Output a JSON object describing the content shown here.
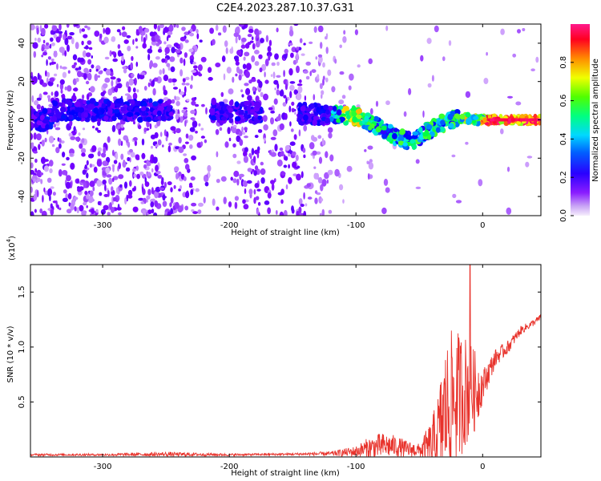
{
  "title": "C2E4.2023.287.10.37.G31",
  "chart_data": [
    {
      "type": "heatmap",
      "xlabel": "Height of straight line (km)",
      "ylabel": "Frequency (Hz)",
      "xlim": [
        -357,
        46
      ],
      "ylim": [
        -50,
        50
      ],
      "xticks": [
        -300,
        -200,
        -100,
        0
      ],
      "yticks": [
        -40,
        -20,
        0,
        20,
        40
      ],
      "ridge": {
        "description_points_x": [
          -340,
          -300,
          -250,
          -210,
          -180,
          -140,
          -120,
          -100,
          -85,
          -70,
          -55,
          -45,
          -35,
          -25,
          -15,
          -5,
          5,
          20,
          46
        ],
        "description_points_y": [
          5,
          5,
          5,
          4,
          4,
          3,
          3,
          2,
          -3,
          -8,
          -12,
          -6,
          -3,
          0,
          1,
          0,
          0,
          0,
          0
        ],
        "peak_amplitude_x_range": [
          -10,
          46
        ]
      },
      "colorbar": {
        "label": "Normalized spectral amplitude",
        "ticks": [
          0.0,
          0.2,
          0.4,
          0.6,
          0.8
        ],
        "range": [
          0,
          1
        ],
        "colors": [
          "#f2e6fb",
          "#7a00ff",
          "#0000ff",
          "#00e6ff",
          "#00ff3c",
          "#f5ff00",
          "#ff8c00",
          "#ff0033",
          "#ff1a8c"
        ]
      }
    },
    {
      "type": "line",
      "xlabel": "Height of straight line (km)",
      "ylabel": "SNR (10 * v/v)",
      "multiplier": "(x10",
      "multiplier_exp": "4",
      "xlim": [
        -357,
        46
      ],
      "ylim": [
        0,
        1.75
      ],
      "xticks": [
        -300,
        -200,
        -100,
        0
      ],
      "yticks": [
        0.5,
        1.0,
        1.5
      ],
      "ytick_labels": [
        "0.5",
        "1.0",
        "1.5"
      ],
      "series": [
        {
          "color": "#e8322b",
          "envelope_x": [
            -357,
            -300,
            -250,
            -200,
            -150,
            -120,
            -100,
            -90,
            -80,
            -70,
            -60,
            -50,
            -40,
            -35,
            -30,
            -25,
            -20,
            -15,
            -10,
            -5,
            0,
            10,
            20,
            30,
            40,
            46
          ],
          "envelope_base": [
            0.02,
            0.02,
            0.025,
            0.02,
            0.025,
            0.03,
            0.05,
            0.08,
            0.1,
            0.1,
            0.07,
            0.06,
            0.1,
            0.2,
            0.4,
            0.5,
            0.55,
            0.6,
            0.6,
            0.6,
            0.65,
            0.9,
            1.0,
            1.15,
            1.22,
            1.27
          ],
          "envelope_amp": [
            0.01,
            0.01,
            0.02,
            0.01,
            0.01,
            0.02,
            0.05,
            0.1,
            0.12,
            0.1,
            0.08,
            0.06,
            0.25,
            0.4,
            0.6,
            0.65,
            0.6,
            0.55,
            0.45,
            0.35,
            0.15,
            0.08,
            0.06,
            0.04,
            0.03,
            0.03
          ],
          "spike": {
            "x": -10,
            "y": 1.75
          }
        }
      ]
    }
  ]
}
